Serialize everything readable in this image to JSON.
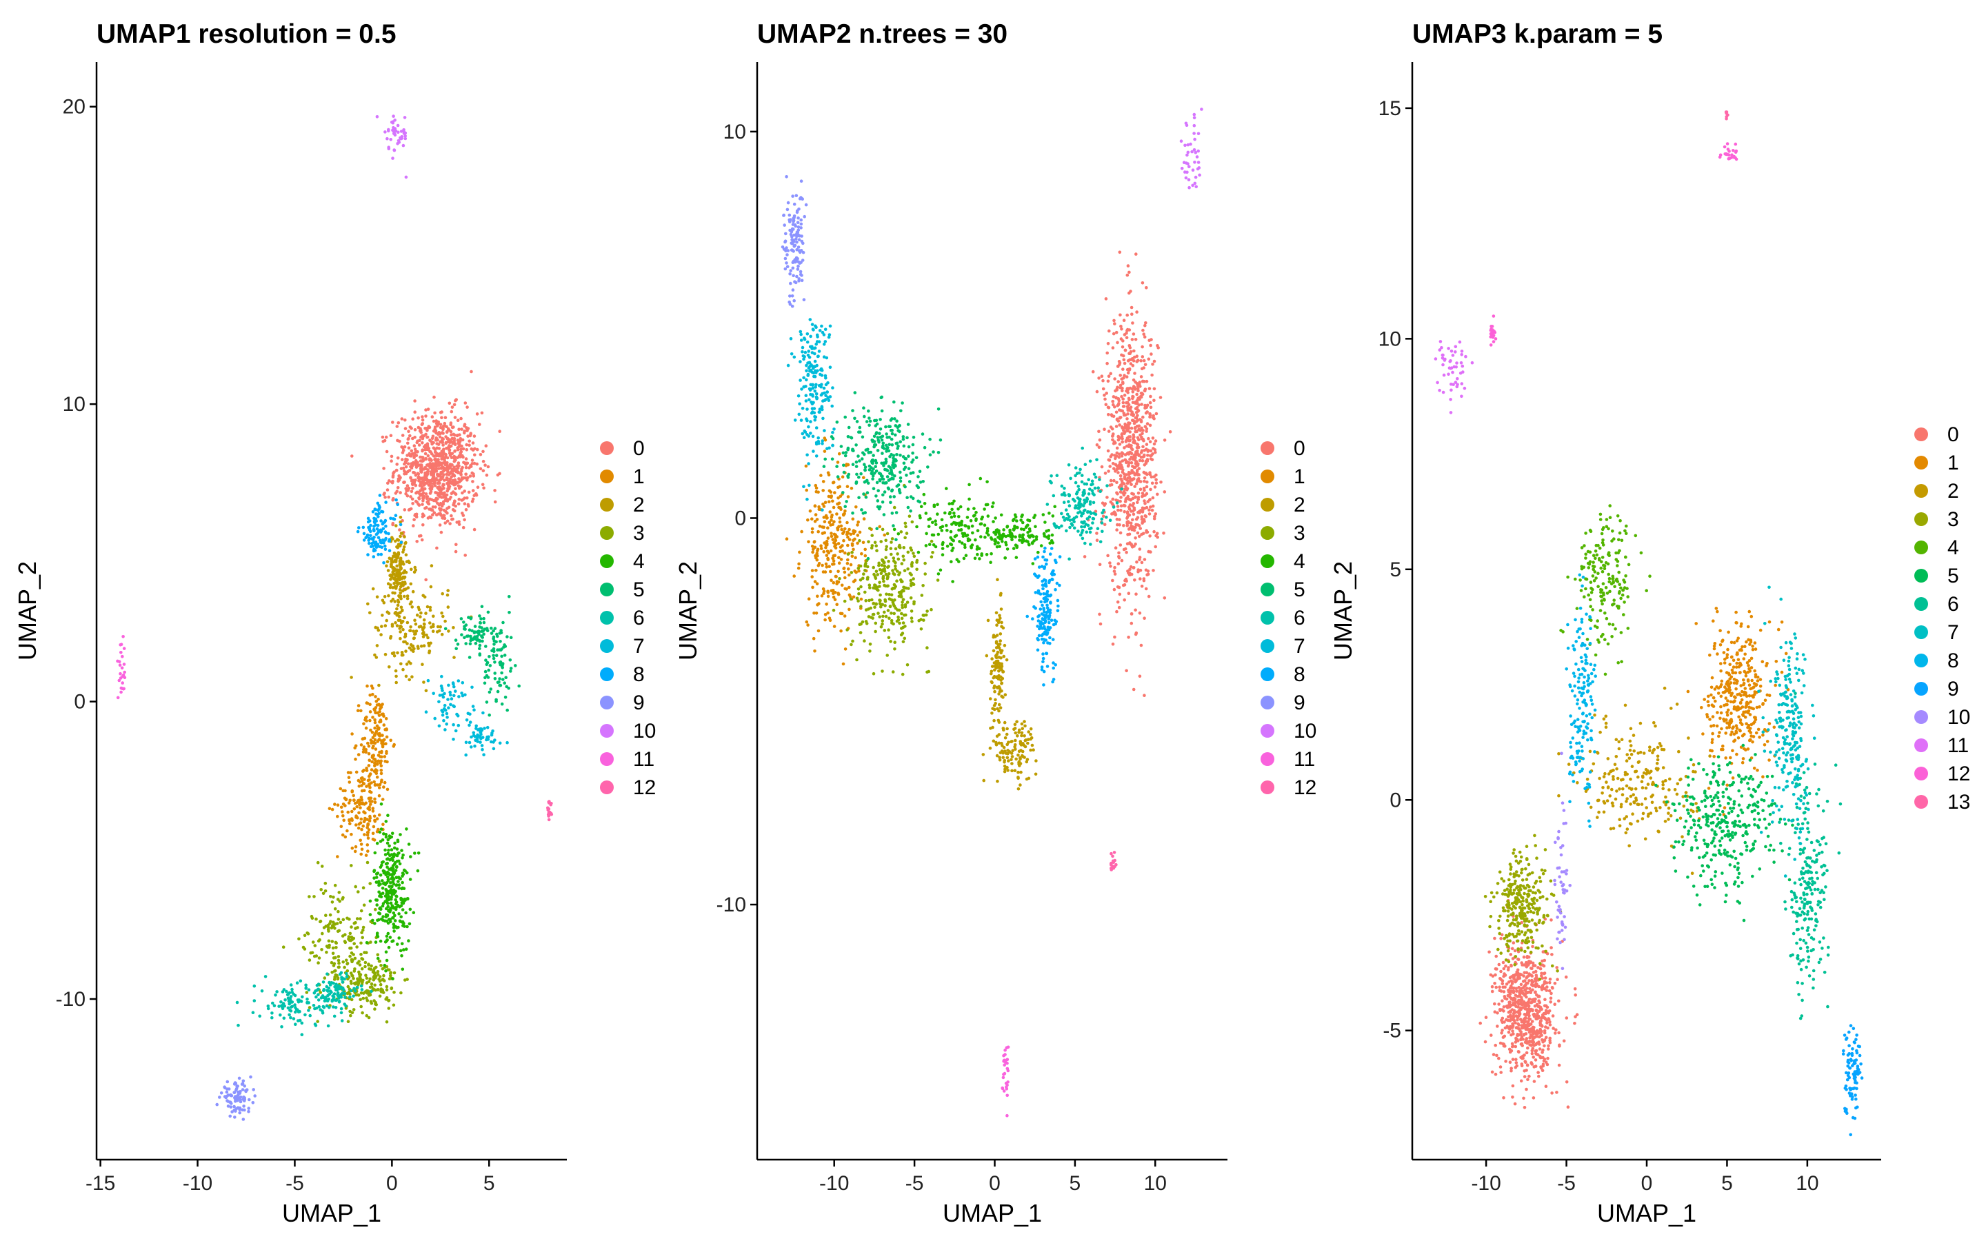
{
  "chart_data": [
    {
      "type": "scatter",
      "title": "UMAP1 resolution = 0.5",
      "xlabel": "UMAP_1",
      "ylabel": "UMAP_2",
      "xlim": [
        -15.2,
        9.0
      ],
      "ylim": [
        -15.4,
        21.5
      ],
      "xticks": [
        -15,
        -10,
        -5,
        0,
        5
      ],
      "yticks": [
        -10,
        0,
        10,
        20
      ],
      "legend_position": "right",
      "legend": [
        "0",
        "1",
        "2",
        "3",
        "4",
        "5",
        "6",
        "7",
        "8",
        "9",
        "10",
        "11",
        "12"
      ],
      "clusters": [
        {
          "name": "0",
          "n": 900,
          "blobs": [
            {
              "cx": 2.3,
              "cy": 7.8,
              "sx": 1.35,
              "sy": 1.2
            }
          ]
        },
        {
          "name": "1",
          "n": 320,
          "blobs": [
            {
              "cx": -0.8,
              "cy": -1.3,
              "sx": 0.5,
              "sy": 1.1
            },
            {
              "cx": -1.5,
              "cy": -3.5,
              "sx": 0.8,
              "sy": 0.9
            }
          ]
        },
        {
          "name": "2",
          "n": 340,
          "blobs": [
            {
              "cx": 1.0,
              "cy": 2.5,
              "sx": 1.2,
              "sy": 1.0
            },
            {
              "cx": 0.3,
              "cy": 4.5,
              "sx": 0.3,
              "sy": 0.8
            }
          ]
        },
        {
          "name": "3",
          "n": 360,
          "blobs": [
            {
              "cx": -2.7,
              "cy": -8.0,
              "sx": 1.2,
              "sy": 1.3
            },
            {
              "cx": -1.3,
              "cy": -9.5,
              "sx": 1.0,
              "sy": 0.6
            }
          ]
        },
        {
          "name": "4",
          "n": 300,
          "blobs": [
            {
              "cx": 0.0,
              "cy": -6.3,
              "sx": 0.6,
              "sy": 1.3
            }
          ]
        },
        {
          "name": "5",
          "n": 150,
          "blobs": [
            {
              "cx": 5.5,
              "cy": 1.2,
              "sx": 0.5,
              "sy": 1.0
            },
            {
              "cx": 4.3,
              "cy": 2.3,
              "sx": 0.6,
              "sy": 0.4
            }
          ]
        },
        {
          "name": "6",
          "n": 200,
          "blobs": [
            {
              "cx": -5.0,
              "cy": -10.2,
              "sx": 1.2,
              "sy": 0.5
            },
            {
              "cx": -3.0,
              "cy": -9.8,
              "sx": 0.8,
              "sy": 0.4
            }
          ]
        },
        {
          "name": "7",
          "n": 110,
          "blobs": [
            {
              "cx": 3.0,
              "cy": 0.0,
              "sx": 0.7,
              "sy": 0.5
            },
            {
              "cx": 4.5,
              "cy": -1.2,
              "sx": 0.8,
              "sy": 0.4
            }
          ]
        },
        {
          "name": "8",
          "n": 110,
          "blobs": [
            {
              "cx": -0.7,
              "cy": 5.7,
              "sx": 0.6,
              "sy": 0.6
            }
          ]
        },
        {
          "name": "9",
          "n": 90,
          "blobs": [
            {
              "cx": -8.0,
              "cy": -13.3,
              "sx": 0.5,
              "sy": 0.3
            }
          ]
        },
        {
          "name": "10",
          "n": 45,
          "blobs": [
            {
              "cx": 0.2,
              "cy": 19.0,
              "sx": 0.4,
              "sy": 0.5
            }
          ]
        },
        {
          "name": "11",
          "n": 25,
          "blobs": [
            {
              "cx": -13.9,
              "cy": 1.0,
              "sx": 0.12,
              "sy": 0.6
            }
          ]
        },
        {
          "name": "12",
          "n": 18,
          "blobs": [
            {
              "cx": 8.1,
              "cy": -3.7,
              "sx": 0.12,
              "sy": 0.2
            }
          ]
        }
      ]
    },
    {
      "type": "scatter",
      "title": "UMAP2 n.trees = 30",
      "xlabel": "UMAP_1",
      "ylabel": "UMAP_2",
      "xlim": [
        -14.8,
        14.5
      ],
      "ylim": [
        -16.6,
        11.8
      ],
      "xticks": [
        -10,
        -5,
        0,
        5,
        10
      ],
      "yticks": [
        -10,
        0,
        10
      ],
      "legend_position": "right",
      "legend": [
        "0",
        "1",
        "2",
        "3",
        "4",
        "5",
        "6",
        "7",
        "8",
        "9",
        "10",
        "11",
        "12"
      ],
      "clusters": [
        {
          "name": "0",
          "n": 850,
          "blobs": [
            {
              "cx": 8.5,
              "cy": 1.6,
              "sx": 1.0,
              "sy": 2.2
            }
          ]
        },
        {
          "name": "1",
          "n": 300,
          "blobs": [
            {
              "cx": -10.0,
              "cy": -0.8,
              "sx": 1.2,
              "sy": 1.3
            }
          ]
        },
        {
          "name": "2",
          "n": 230,
          "blobs": [
            {
              "cx": 1.2,
              "cy": -6.0,
              "sx": 0.9,
              "sy": 0.5
            },
            {
              "cx": 0.2,
              "cy": -3.8,
              "sx": 0.3,
              "sy": 0.9
            }
          ]
        },
        {
          "name": "3",
          "n": 300,
          "blobs": [
            {
              "cx": -6.5,
              "cy": -1.8,
              "sx": 1.5,
              "sy": 1.0
            }
          ]
        },
        {
          "name": "4",
          "n": 280,
          "blobs": [
            {
              "cx": -2.5,
              "cy": -0.3,
              "sx": 1.5,
              "sy": 0.6
            },
            {
              "cx": 1.5,
              "cy": -0.4,
              "sx": 1.4,
              "sy": 0.4
            }
          ]
        },
        {
          "name": "5",
          "n": 300,
          "blobs": [
            {
              "cx": -7.0,
              "cy": 1.5,
              "sx": 1.6,
              "sy": 0.9
            }
          ]
        },
        {
          "name": "6",
          "n": 160,
          "blobs": [
            {
              "cx": 5.3,
              "cy": 0.4,
              "sx": 1.1,
              "sy": 0.6
            }
          ]
        },
        {
          "name": "7",
          "n": 200,
          "blobs": [
            {
              "cx": -11.3,
              "cy": 3.5,
              "sx": 0.7,
              "sy": 1.2
            }
          ]
        },
        {
          "name": "8",
          "n": 160,
          "blobs": [
            {
              "cx": 3.2,
              "cy": -2.4,
              "sx": 0.5,
              "sy": 1.0
            }
          ]
        },
        {
          "name": "9",
          "n": 130,
          "blobs": [
            {
              "cx": -12.5,
              "cy": 7.0,
              "sx": 0.4,
              "sy": 0.9
            }
          ]
        },
        {
          "name": "10",
          "n": 40,
          "blobs": [
            {
              "cx": 12.3,
              "cy": 9.5,
              "sx": 0.4,
              "sy": 0.8
            }
          ]
        },
        {
          "name": "11",
          "n": 28,
          "blobs": [
            {
              "cx": 0.7,
              "cy": -14.4,
              "sx": 0.15,
              "sy": 0.6
            }
          ]
        },
        {
          "name": "12",
          "n": 18,
          "blobs": [
            {
              "cx": 7.4,
              "cy": -8.9,
              "sx": 0.12,
              "sy": 0.2
            }
          ]
        }
      ]
    },
    {
      "type": "scatter",
      "title": "UMAP3 k.param = 5",
      "xlabel": "UMAP_1",
      "ylabel": "UMAP_2",
      "xlim": [
        -14.6,
        14.6
      ],
      "ylim": [
        -7.8,
        16.0
      ],
      "xticks": [
        -10,
        -5,
        0,
        5,
        10
      ],
      "yticks": [
        -5,
        0,
        5,
        10,
        15
      ],
      "legend_position": "right",
      "legend": [
        "0",
        "1",
        "2",
        "3",
        "4",
        "5",
        "6",
        "7",
        "8",
        "9",
        "10",
        "11",
        "12",
        "13"
      ],
      "clusters": [
        {
          "name": "0",
          "n": 700,
          "blobs": [
            {
              "cx": -7.5,
              "cy": -4.6,
              "sx": 1.2,
              "sy": 0.9
            }
          ]
        },
        {
          "name": "1",
          "n": 350,
          "blobs": [
            {
              "cx": 5.7,
              "cy": 2.3,
              "sx": 1.2,
              "sy": 1.0
            }
          ]
        },
        {
          "name": "2",
          "n": 220,
          "blobs": [
            {
              "cx": -0.5,
              "cy": 0.4,
              "sx": 2.2,
              "sy": 0.8
            }
          ]
        },
        {
          "name": "3",
          "n": 280,
          "blobs": [
            {
              "cx": -7.7,
              "cy": -2.3,
              "sx": 1.1,
              "sy": 0.7
            }
          ]
        },
        {
          "name": "4",
          "n": 180,
          "blobs": [
            {
              "cx": -2.5,
              "cy": 4.8,
              "sx": 1.1,
              "sy": 0.9
            }
          ]
        },
        {
          "name": "5",
          "n": 320,
          "blobs": [
            {
              "cx": 4.8,
              "cy": -0.5,
              "sx": 2.0,
              "sy": 0.9
            }
          ]
        },
        {
          "name": "6",
          "n": 220,
          "blobs": [
            {
              "cx": 10.0,
              "cy": -2.0,
              "sx": 0.8,
              "sy": 1.4
            }
          ]
        },
        {
          "name": "7",
          "n": 220,
          "blobs": [
            {
              "cx": 9.0,
              "cy": 1.3,
              "sx": 0.8,
              "sy": 1.3
            }
          ]
        },
        {
          "name": "8",
          "n": 160,
          "blobs": [
            {
              "cx": -4.0,
              "cy": 2.0,
              "sx": 0.5,
              "sy": 1.3
            }
          ]
        },
        {
          "name": "9",
          "n": 90,
          "blobs": [
            {
              "cx": 12.8,
              "cy": -5.8,
              "sx": 0.4,
              "sy": 0.6
            }
          ]
        },
        {
          "name": "10",
          "n": 50,
          "blobs": [
            {
              "cx": -5.3,
              "cy": -1.5,
              "sx": 0.25,
              "sy": 1.0
            }
          ]
        },
        {
          "name": "11",
          "n": 50,
          "blobs": [
            {
              "cx": -12.2,
              "cy": 9.3,
              "sx": 0.6,
              "sy": 0.5
            }
          ]
        },
        {
          "name": "12",
          "n": 45,
          "blobs": [
            {
              "cx": 5.2,
              "cy": 14.0,
              "sx": 0.35,
              "sy": 0.12
            },
            {
              "cx": -9.6,
              "cy": 10.1,
              "sx": 0.1,
              "sy": 0.15
            }
          ]
        },
        {
          "name": "13",
          "n": 6,
          "blobs": [
            {
              "cx": 5.0,
              "cy": 14.8,
              "sx": 0.05,
              "sy": 0.08
            }
          ]
        }
      ]
    }
  ],
  "palette": [
    "#F8766D",
    "#DE8C00",
    "#B79F00",
    "#7CAE00",
    "#00BA38",
    "#00C08B",
    "#00BFC4",
    "#00B4F0",
    "#619CFF",
    "#C77CFF",
    "#F564E3",
    "#FF64B0",
    "#E76BF3",
    "#F8766D"
  ],
  "palette_13": [
    "#F8766D",
    "#E18A00",
    "#BE9C00",
    "#8CAB00",
    "#24B700",
    "#00BE70",
    "#00C1AB",
    "#00BBDA",
    "#00ACFC",
    "#8B93FF",
    "#D575FE",
    "#F962DD",
    "#FF65AC"
  ],
  "palette_14": [
    "#F8766D",
    "#E38900",
    "#C49A00",
    "#99A800",
    "#53B400",
    "#00BC56",
    "#00C094",
    "#00BFC4",
    "#00B6EB",
    "#06A4FF",
    "#A58AFF",
    "#DF70F8",
    "#FB61D7",
    "#FF66A8"
  ]
}
